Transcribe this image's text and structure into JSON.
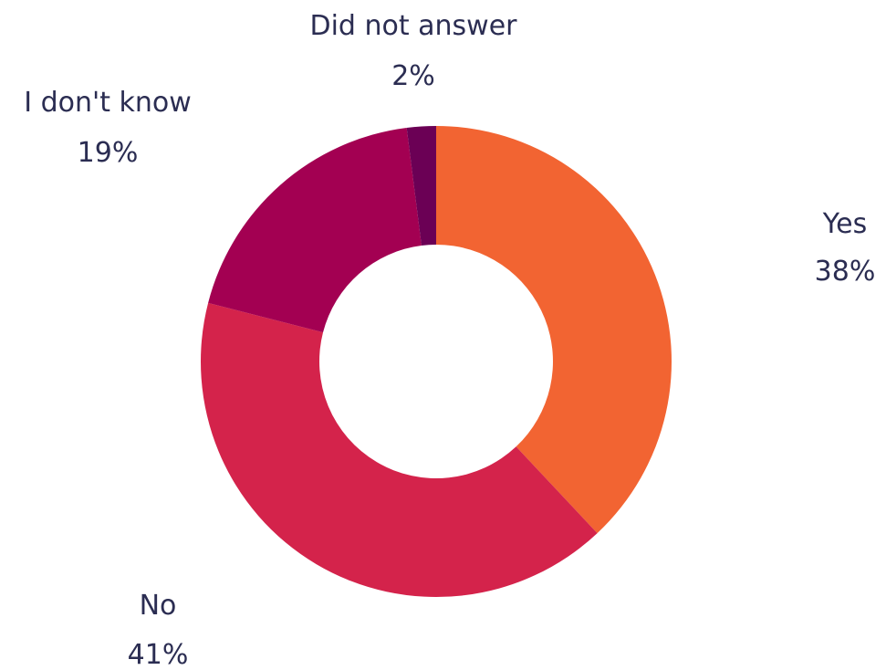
{
  "chart_data": {
    "type": "pie",
    "style": "donut",
    "slices": [
      {
        "label": "Yes",
        "value": 38,
        "display": "38%",
        "color": "#f26432"
      },
      {
        "label": "No",
        "value": 41,
        "display": "41%",
        "color": "#d4234b"
      },
      {
        "label": "I don't know",
        "value": 19,
        "display": "19%",
        "color": "#a30052"
      },
      {
        "label": "Did not answer",
        "value": 2,
        "display": "2%",
        "color": "#6b0055"
      }
    ],
    "label_color": "#2b2d52"
  }
}
